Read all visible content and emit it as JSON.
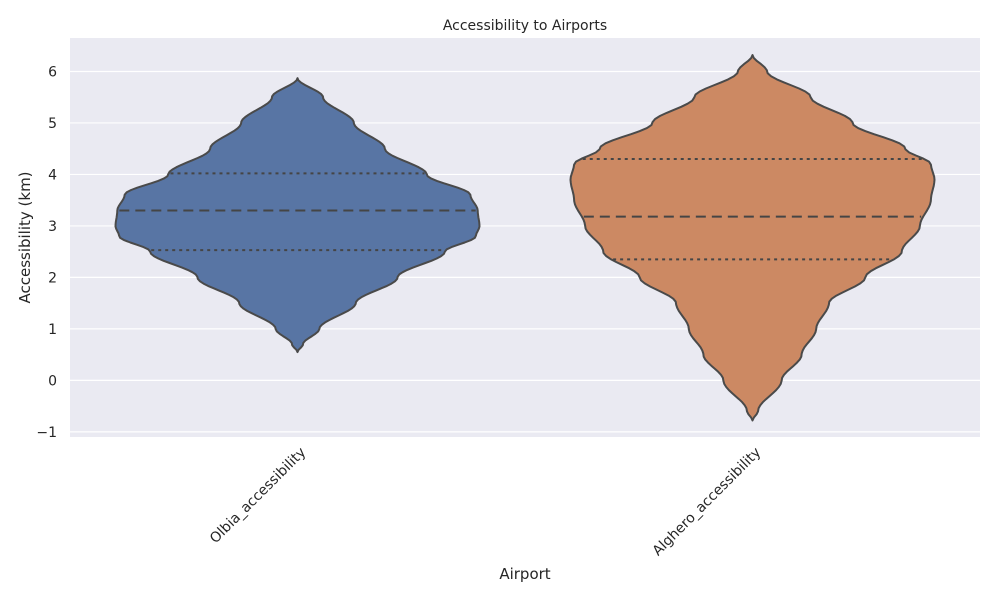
{
  "chart_data": {
    "type": "violin",
    "title": "Accessibility to Airports",
    "xlabel": "Airport",
    "ylabel": "Accessibility (km)",
    "ylim": [
      -1.1,
      6.65
    ],
    "yticks": [
      -1,
      0,
      1,
      2,
      3,
      4,
      5,
      6
    ],
    "ytick_labels": [
      "−1",
      "0",
      "1",
      "2",
      "3",
      "4",
      "5",
      "6"
    ],
    "categories": [
      "Olbia_accessibility",
      "Alghero_accessibility"
    ],
    "grid": true,
    "inner": "quartile",
    "series": [
      {
        "category": "Olbia_accessibility",
        "color": "#5875a4",
        "min": 0.55,
        "max": 5.87,
        "q1": 2.53,
        "median": 3.3,
        "q3": 4.02,
        "density": [
          [
            0.55,
            0.0
          ],
          [
            0.7,
            0.03
          ],
          [
            1.0,
            0.12
          ],
          [
            1.5,
            0.32
          ],
          [
            2.0,
            0.55
          ],
          [
            2.5,
            0.81
          ],
          [
            2.8,
            0.98
          ],
          [
            3.0,
            1.0
          ],
          [
            3.3,
            0.99
          ],
          [
            3.6,
            0.95
          ],
          [
            4.0,
            0.71
          ],
          [
            4.5,
            0.48
          ],
          [
            5.0,
            0.31
          ],
          [
            5.5,
            0.14
          ],
          [
            5.87,
            0.0
          ]
        ]
      },
      {
        "category": "Alghero_accessibility",
        "color": "#cc8963",
        "min": -0.78,
        "max": 6.32,
        "q1": 2.35,
        "median": 3.18,
        "q3": 4.3,
        "density": [
          [
            -0.78,
            0.0
          ],
          [
            -0.6,
            0.03
          ],
          [
            0.0,
            0.16
          ],
          [
            0.5,
            0.27
          ],
          [
            1.0,
            0.35
          ],
          [
            1.5,
            0.42
          ],
          [
            2.0,
            0.62
          ],
          [
            2.5,
            0.82
          ],
          [
            3.0,
            0.92
          ],
          [
            3.5,
            0.98
          ],
          [
            3.9,
            1.0
          ],
          [
            4.2,
            0.98
          ],
          [
            4.5,
            0.84
          ],
          [
            5.0,
            0.55
          ],
          [
            5.5,
            0.32
          ],
          [
            6.0,
            0.08
          ],
          [
            6.32,
            0.0
          ]
        ]
      }
    ]
  }
}
